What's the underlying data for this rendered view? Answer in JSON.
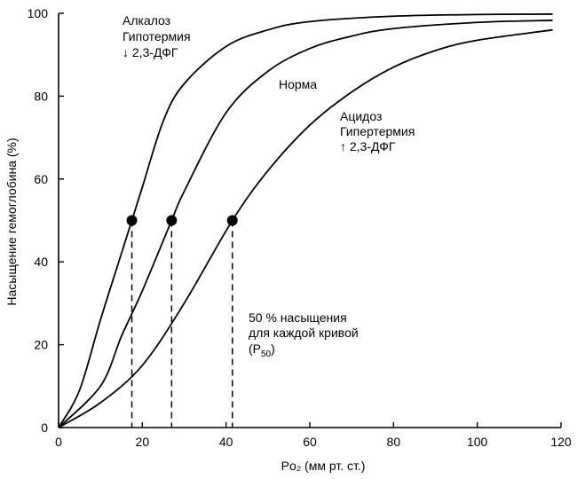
{
  "chart_data": {
    "type": "line",
    "xlabel": "Po₂ (мм рт. ст.)",
    "ylabel": "Насыщение гемоглобина (%)",
    "xlim": [
      0,
      120
    ],
    "ylim": [
      0,
      100
    ],
    "xticks": [
      "0",
      "20",
      "40",
      "60",
      "80",
      "100",
      "120"
    ],
    "yticks": [
      "0",
      "20",
      "40",
      "60",
      "80",
      "100"
    ],
    "grid": false,
    "series": [
      {
        "name": "Алкалоз / Гипотермия / ↓ 2,3-ДФГ",
        "p50": 17.5,
        "x": [
          0,
          5,
          10,
          15,
          17.5,
          20,
          25,
          30,
          40,
          50,
          60,
          80,
          100,
          118
        ],
        "y": [
          0,
          9,
          26,
          42,
          50,
          58,
          74,
          83,
          92,
          96,
          98,
          99.3,
          99.7,
          99.8
        ]
      },
      {
        "name": "Норма",
        "p50": 27,
        "x": [
          0,
          10,
          15,
          20,
          27,
          30,
          40,
          50,
          60,
          70,
          80,
          100,
          118
        ],
        "y": [
          0,
          10,
          22,
          33,
          50,
          57,
          76,
          86,
          91.5,
          94.5,
          96.3,
          97.8,
          98.3
        ]
      },
      {
        "name": "Ацидоз / Гипертермия / ↑ 2,3-ДФГ",
        "p50": 41.5,
        "x": [
          0,
          10,
          20,
          30,
          41.5,
          50,
          60,
          70,
          80,
          90,
          100,
          118
        ],
        "y": [
          0,
          6,
          15,
          30,
          50,
          62,
          73,
          81,
          87,
          91,
          93.5,
          96
        ]
      }
    ],
    "p50_level": 50,
    "annotations": {
      "left_curve": [
        "Алкалоз",
        "Гипотермия",
        "↓ 2,3-ДФГ"
      ],
      "middle_curve": [
        "Норма"
      ],
      "right_curve": [
        "Ацидоз",
        "Гипертермия",
        "↑ 2,3-ДФГ"
      ],
      "p50_note": [
        "50 % насыщения",
        "для каждой кривой"
      ],
      "p50_label_main": "(P",
      "p50_label_sub": "50",
      "p50_label_close": ")"
    }
  }
}
